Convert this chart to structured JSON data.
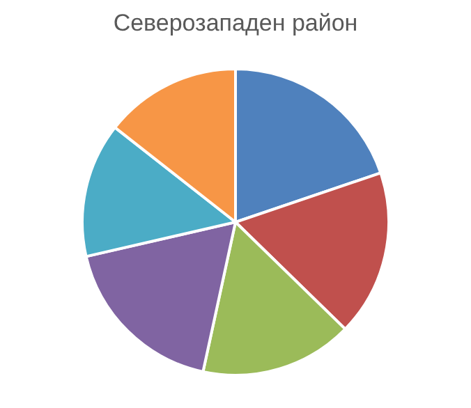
{
  "chart_data": {
    "type": "pie",
    "title": "Северозападен район",
    "categories": [
      null,
      null,
      null,
      null,
      null,
      null
    ],
    "values": [
      19.8,
      17.5,
      16.1,
      18,
      14.2,
      14.4
    ],
    "colors": [
      "#4f81bd",
      "#c0504d",
      "#9bbb59",
      "#8064a2",
      "#4bacc6",
      "#f79646"
    ]
  }
}
